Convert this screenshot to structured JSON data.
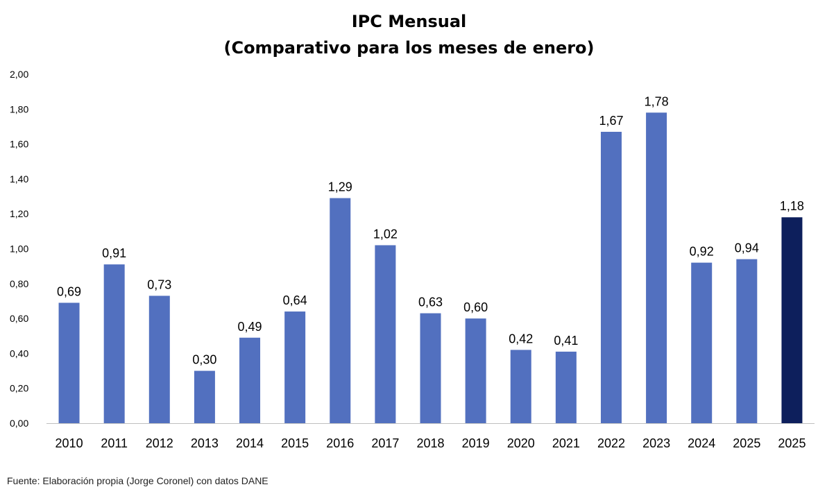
{
  "chart_data": {
    "type": "bar",
    "title": "IPC Mensual",
    "subtitle": "(Comparativo para los meses de enero)",
    "categories": [
      "2010",
      "2011",
      "2012",
      "2013",
      "2014",
      "2015",
      "2016",
      "2017",
      "2018",
      "2019",
      "2020",
      "2021",
      "2022",
      "2023",
      "2024",
      "2025",
      "2025"
    ],
    "values": [
      0.69,
      0.91,
      0.73,
      0.3,
      0.49,
      0.64,
      1.29,
      1.02,
      0.63,
      0.6,
      0.42,
      0.41,
      1.67,
      1.78,
      0.92,
      0.94,
      1.18
    ],
    "data_labels": [
      "0,69",
      "0,91",
      "0,73",
      "0,30",
      "0,49",
      "0,64",
      "1,29",
      "1,02",
      "0,63",
      "0,60",
      "0,42",
      "0,41",
      "1,67",
      "1,78",
      "0,92",
      "0,94",
      "1,18"
    ],
    "y_ticks": [
      "0,00",
      "0,20",
      "0,40",
      "0,60",
      "0,80",
      "1,00",
      "1,20",
      "1,40",
      "1,60",
      "1,80",
      "2,00"
    ],
    "ylim": [
      0,
      2
    ],
    "grid": false,
    "legend": "none",
    "colors": {
      "bar": "#5270BF",
      "highlight_bar": "#0D1F5C",
      "axis": "#BFBFBF"
    },
    "highlight_index": 16
  },
  "source_note": "Fuente: Elaboración propia (Jorge Coronel) con datos DANE"
}
